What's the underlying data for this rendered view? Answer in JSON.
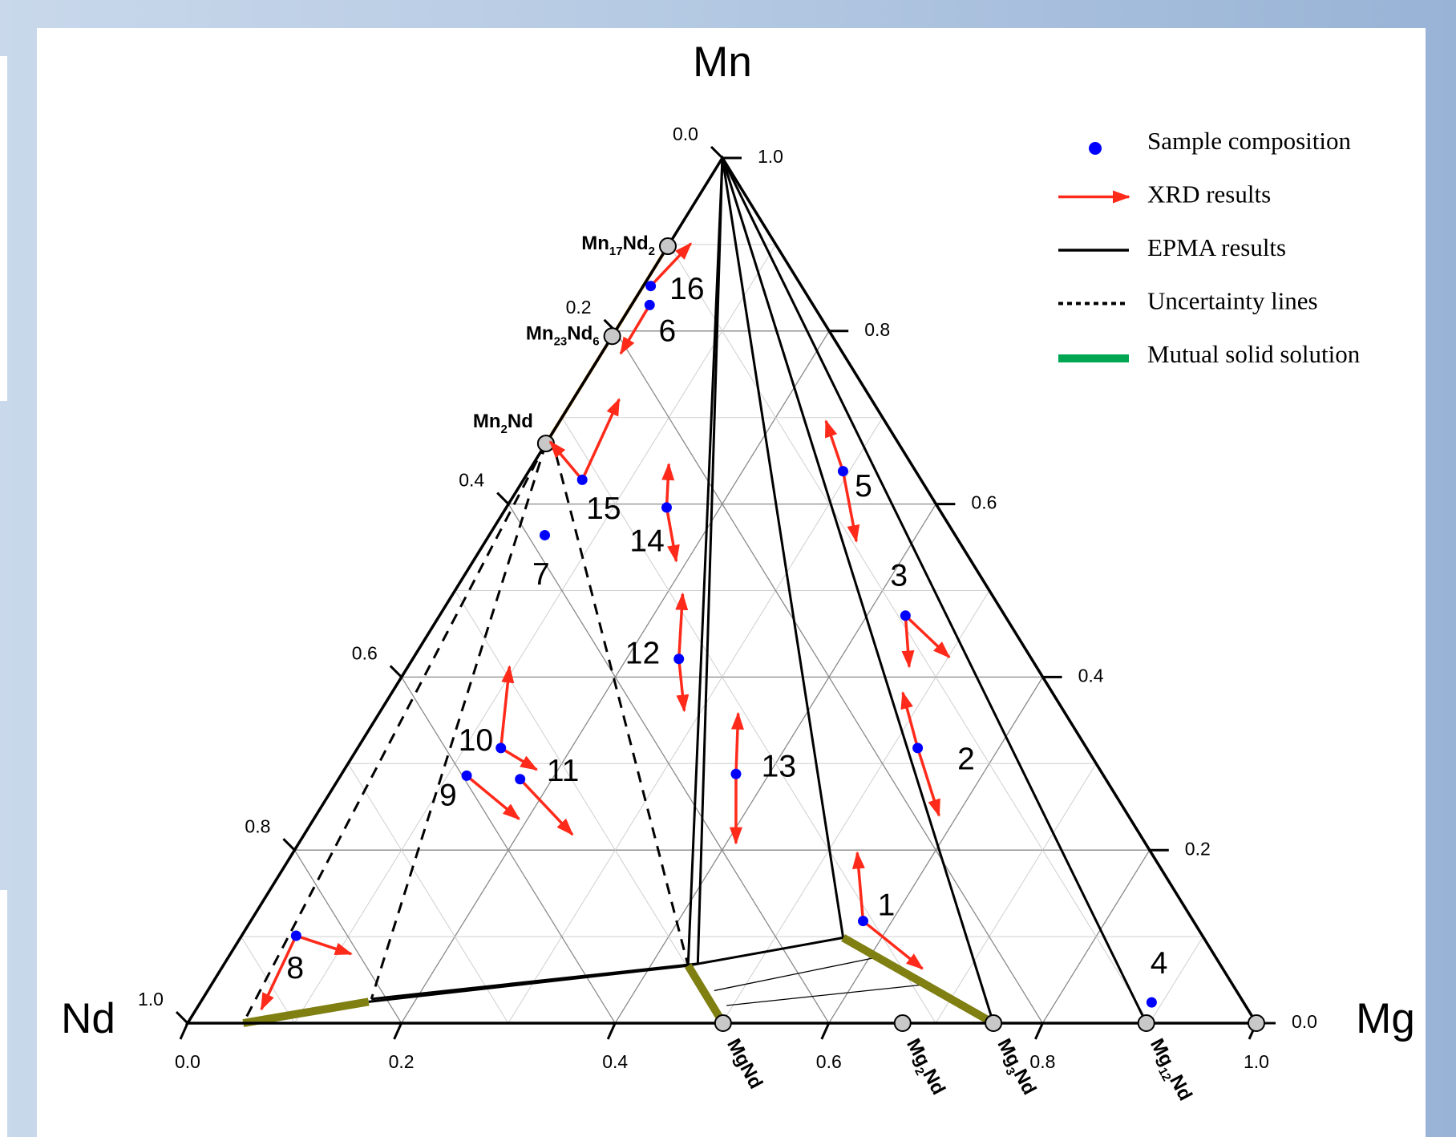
{
  "chart_data": {
    "type": "ternary",
    "corners": {
      "mn": "Mn",
      "nd": "Nd",
      "mg": "Mg"
    },
    "mg_ticks": [
      {
        "value": 0,
        "label": "0.0"
      },
      0.2,
      0.4,
      0.6,
      0.8,
      {
        "value": 1,
        "label": "1.0"
      }
    ],
    "mn_ticks": [
      {
        "value": 0,
        "label": "0.0"
      },
      0.2,
      0.4,
      0.6,
      0.8,
      {
        "value": 1,
        "label": "1.0"
      }
    ],
    "nd_ticks": [
      {
        "value": 0,
        "label": "0.0"
      },
      0.2,
      0.4,
      0.6,
      0.8,
      {
        "value": 1,
        "label": "1.0"
      }
    ],
    "grid": true,
    "legend": [
      {
        "name": "Sample composition",
        "color": "#0000ff"
      },
      {
        "name": "XRD results",
        "color": "#ff2a1a"
      },
      {
        "name": "EPMA results",
        "color": "#000000"
      },
      {
        "name": "Uncertainty lines",
        "color": "#000000"
      },
      {
        "name": "Mutual solid solution",
        "color": "#00a651"
      }
    ],
    "samples": [
      {
        "label": "1",
        "mg": 0.573,
        "mn": 0.118,
        "xrd": [
          {
            "mg": 0.528,
            "mn": 0.197
          },
          {
            "mg": 0.656,
            "mn": 0.063
          }
        ]
      },
      {
        "label": "2",
        "mg": 0.524,
        "mn": 0.318,
        "xrd": [
          {
            "mg": 0.478,
            "mn": 0.382
          },
          {
            "mg": 0.583,
            "mn": 0.24
          }
        ]
      },
      {
        "label": "3",
        "mg": 0.436,
        "mn": 0.471,
        "xrd": [
          {
            "mg": 0.469,
            "mn": 0.412
          },
          {
            "mg": 0.501,
            "mn": 0.423
          }
        ]
      },
      {
        "label": "4",
        "mg": 0.89,
        "mn": 0.024,
        "xrd": []
      },
      {
        "label": "5",
        "mg": 0.294,
        "mn": 0.638,
        "xrd": [
          {
            "mg": 0.249,
            "mn": 0.696
          },
          {
            "mg": 0.347,
            "mn": 0.557
          }
        ]
      },
      {
        "label": "6",
        "mg": 0.017,
        "mn": 0.83,
        "xrd": [
          {
            "mg": 0.018,
            "mn": 0.774
          }
        ]
      },
      {
        "label": "7",
        "mg": 0.052,
        "mn": 0.564,
        "xrd": []
      },
      {
        "label": "8",
        "mg": 0.051,
        "mn": 0.101,
        "xrd": [
          {
            "mg": 0.113,
            "mn": 0.08
          },
          {
            "mg": 0.061,
            "mn": 0.016
          }
        ]
      },
      {
        "label": "9",
        "mg": 0.118,
        "mn": 0.286,
        "xrd": [
          {
            "mg": 0.192,
            "mn": 0.236
          }
        ]
      },
      {
        "label": "10",
        "mg": 0.134,
        "mn": 0.318,
        "xrd": [
          {
            "mg": 0.095,
            "mn": 0.412
          },
          {
            "mg": 0.18,
            "mn": 0.293
          }
        ]
      },
      {
        "label": "11",
        "mg": 0.17,
        "mn": 0.282,
        "xrd": [
          {
            "mg": 0.251,
            "mn": 0.218
          }
        ]
      },
      {
        "label": "12",
        "mg": 0.249,
        "mn": 0.421,
        "xrd": [
          {
            "mg": 0.215,
            "mn": 0.496
          },
          {
            "mg": 0.284,
            "mn": 0.361
          }
        ]
      },
      {
        "label": "13",
        "mg": 0.369,
        "mn": 0.288,
        "xrd": [
          {
            "mg": 0.336,
            "mn": 0.358
          },
          {
            "mg": 0.409,
            "mn": 0.208
          }
        ]
      },
      {
        "label": "14",
        "mg": 0.15,
        "mn": 0.596,
        "xrd": [
          {
            "mg": 0.127,
            "mn": 0.646
          },
          {
            "mg": 0.19,
            "mn": 0.534
          }
        ]
      },
      {
        "label": "15",
        "mg": 0.055,
        "mn": 0.628,
        "xrd": [
          {
            "mg": 0.003,
            "mn": 0.672
          },
          {
            "mg": 0.043,
            "mn": 0.721
          }
        ]
      },
      {
        "label": "16",
        "mg": 0.007,
        "mn": 0.852,
        "xrd": [
          {
            "mg": 0.02,
            "mn": 0.901
          }
        ]
      }
    ],
    "phases": [
      {
        "formula": "Mn17Nd2",
        "mg": 0,
        "mn": 0.898
      },
      {
        "formula": "Mn23Nd6",
        "mg": 0,
        "mn": 0.794
      },
      {
        "formula": "Mn2Nd",
        "mg": 0,
        "mn": 0.67
      },
      {
        "formula": "MgNd",
        "mg": 0.501,
        "mn": 0
      },
      {
        "formula": "Mg2Nd",
        "mg": 0.669,
        "mn": 0
      },
      {
        "formula": "Mg3Nd",
        "mg": 0.754,
        "mn": 0
      },
      {
        "formula": "Mg12Nd",
        "mg": 0.897,
        "mn": 0
      },
      {
        "formula": null,
        "mg": 1,
        "mn": 0
      }
    ],
    "epma_lines": [
      [
        {
          "mg": 0,
          "mn": 1
        },
        {
          "mg": 0.435,
          "mn": 0.0665
        }
      ],
      [
        {
          "mg": 0,
          "mn": 1
        },
        {
          "mg": 0.443,
          "mn": 0.0687
        }
      ],
      [
        {
          "mg": 0,
          "mn": 1
        },
        {
          "mg": 0.564,
          "mn": 0.0987
        }
      ],
      [
        {
          "mg": 0,
          "mn": 1
        },
        {
          "mg": 0.754,
          "mn": 0
        }
      ],
      [
        {
          "mg": 0,
          "mn": 1
        },
        {
          "mg": 0.897,
          "mn": 0
        }
      ],
      [
        {
          "mg": 0.157,
          "mn": 0.0247
        },
        {
          "mg": 0.435,
          "mn": 0.0665
        }
      ],
      [
        {
          "mg": 0.158,
          "mn": 0.0279
        },
        {
          "mg": 0.443,
          "mn": 0.0687
        }
      ],
      [
        {
          "mg": 0.435,
          "mn": 0.0665
        },
        {
          "mg": 0.564,
          "mn": 0.0987
        }
      ],
      [
        {
          "mg": 0.474,
          "mn": 0.0376
        },
        {
          "mg": 0.611,
          "mn": 0.0773
        }
      ],
      [
        {
          "mg": 0.494,
          "mn": 0.0204
        },
        {
          "mg": 0.671,
          "mn": 0.0451
        }
      ]
    ],
    "uncertainty_lines": [
      [
        {
          "mg": 0,
          "mn": 0.67
        },
        {
          "mg": 0.052,
          "mn": 0
        }
      ],
      [
        {
          "mg": 0,
          "mn": 0.67
        },
        {
          "mg": 0.158,
          "mn": 0.0279
        }
      ],
      [
        {
          "mg": 0.016,
          "mn": 0.657
        },
        {
          "mg": 0.435,
          "mn": 0.0665
        }
      ]
    ],
    "solid_solution": [
      {
        "color": "#7f7f12",
        "points": [
          {
            "mg": 0.052,
            "mn": 0
          },
          {
            "mg": 0.157,
            "mn": 0.0247
          }
        ]
      },
      {
        "color": "#7f7f12",
        "points": [
          {
            "mg": 0.435,
            "mn": 0.0665
          },
          {
            "mg": 0.501,
            "mn": 0
          }
        ]
      },
      {
        "color": "#7f7f12",
        "points": [
          {
            "mg": 0.564,
            "mn": 0.0987
          },
          {
            "mg": 0.754,
            "mn": 0
          }
        ]
      },
      {
        "color": "#f39200",
        "points": [
          {
            "mg": 0,
            "mn": 0.67
          },
          {
            "mg": 0,
            "mn": 0.898
          }
        ]
      }
    ]
  }
}
